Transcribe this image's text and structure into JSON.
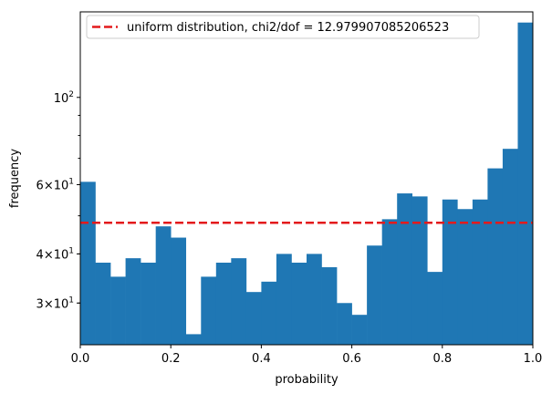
{
  "chart_data": {
    "type": "bar",
    "xlabel": "probability",
    "ylabel": "frequency",
    "xlim": [
      0,
      1
    ],
    "ylim": [
      23.5,
      165
    ],
    "yscale": "log",
    "x_ticks": [
      {
        "value": 0.0,
        "label": "0.0"
      },
      {
        "value": 0.2,
        "label": "0.2"
      },
      {
        "value": 0.4,
        "label": "0.4"
      },
      {
        "value": 0.6,
        "label": "0.6"
      },
      {
        "value": 0.8,
        "label": "0.8"
      },
      {
        "value": 1.0,
        "label": "1.0"
      }
    ],
    "y_ticks": [
      {
        "value": 30,
        "label": "3×10",
        "exp": "1"
      },
      {
        "value": 40,
        "label": "4×10",
        "exp": "1"
      },
      {
        "value": 60,
        "label": "6×10",
        "exp": "1"
      },
      {
        "value": 100,
        "label": "10",
        "exp": "2"
      }
    ],
    "y_minor_ticks": [
      20,
      30,
      40,
      50,
      60,
      70,
      80,
      90,
      200
    ],
    "bin_edges": [
      0.0,
      0.0333,
      0.0667,
      0.1,
      0.1333,
      0.1667,
      0.2,
      0.2333,
      0.2667,
      0.3,
      0.3333,
      0.3667,
      0.4,
      0.4333,
      0.4667,
      0.5,
      0.5333,
      0.5667,
      0.6,
      0.6333,
      0.6667,
      0.7,
      0.7333,
      0.7667,
      0.8,
      0.8333,
      0.8667,
      0.9,
      0.9333,
      0.9667,
      1.0
    ],
    "values": [
      61,
      38,
      35,
      39,
      38,
      47,
      44,
      25,
      35,
      38,
      39,
      32,
      34,
      40,
      38,
      40,
      37,
      30,
      28,
      42,
      49,
      57,
      56,
      36,
      55,
      52,
      55,
      66,
      74,
      155
    ],
    "bar_color": "#1f77b4",
    "reference_line": {
      "value": 48,
      "color": "#e31a1c",
      "style": "dashed"
    },
    "legend": {
      "label": "uniform distribution, chi2/dof = 12.979907085206523",
      "placement": "upper left"
    }
  }
}
